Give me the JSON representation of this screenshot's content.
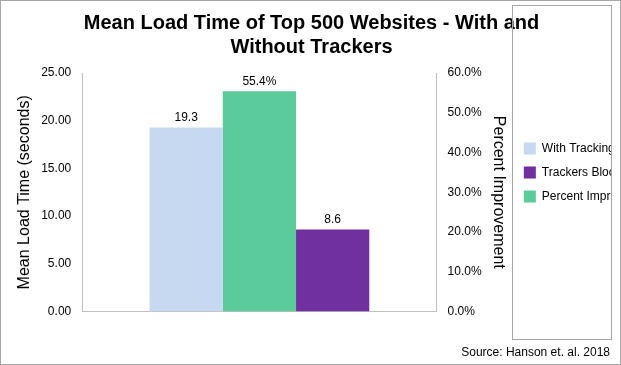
{
  "chart_data": {
    "type": "bar",
    "title": [
      "Mean Load Time of Top 500 Websites - With and",
      "Without Trackers"
    ],
    "annotation": "Source: Hanson et. al. 2018",
    "categories": [
      null
    ],
    "series": [
      {
        "name": "With Tracking",
        "color": "#c6d9f1",
        "values": [
          19.3
        ]
      },
      {
        "name": "Percent Improvement",
        "color": "#5ccb9b",
        "values": [
          55.4
        ],
        "value_labels": [
          "55.4%"
        ],
        "axis": "y2"
      },
      {
        "name": "Trackers Blocked",
        "color": "#7030a0",
        "values": [
          8.6
        ]
      }
    ],
    "y_label": "Mean Load Time (seconds)",
    "y2_label": "Percent Improvement",
    "ylim": [
      0,
      25
    ],
    "yticks": [
      {
        "value": 0,
        "label": "0.00"
      },
      {
        "value": 5,
        "label": "5.00"
      },
      {
        "value": 10,
        "label": "10.00"
      },
      {
        "value": 15,
        "label": "15.00"
      },
      {
        "value": 20,
        "label": "20.00"
      },
      {
        "value": 25,
        "label": "25.00"
      }
    ],
    "y2lim": [
      0,
      60
    ],
    "y2ticks": [
      {
        "value": 0,
        "label": "0.0%"
      },
      {
        "value": 10,
        "label": "10.0%"
      },
      {
        "value": 20,
        "label": "20.0%"
      },
      {
        "value": 30,
        "label": "30.0%"
      },
      {
        "value": 40,
        "label": "40.0%"
      },
      {
        "value": 50,
        "label": "50.0%"
      },
      {
        "value": 60,
        "label": "60.0%"
      }
    ],
    "grid": false,
    "legend": "right",
    "data_labels": true
  }
}
